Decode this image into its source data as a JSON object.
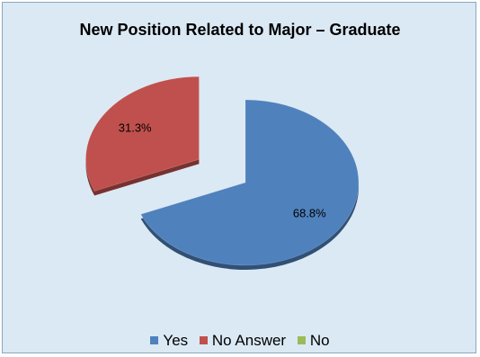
{
  "chart_data": {
    "type": "pie",
    "title": "New Position Related to Major – Graduate",
    "slices": [
      {
        "name": "Yes",
        "value": 68.8,
        "label": "68.8%",
        "color": "#4f81bd",
        "exploded": false
      },
      {
        "name": "No Answer",
        "value": 31.3,
        "label": "31.3%",
        "color": "#c0504d",
        "exploded": true
      },
      {
        "name": "No",
        "value": 0,
        "label": "",
        "color": "#9bbb59",
        "exploded": false
      }
    ],
    "legend": {
      "placement": "bottom",
      "entries": [
        {
          "name": "Yes",
          "color": "#4f81bd"
        },
        {
          "name": "No Answer",
          "color": "#c0504d"
        },
        {
          "name": "No",
          "color": "#9bbb59"
        }
      ]
    },
    "background_color": "#dbe9f4"
  }
}
